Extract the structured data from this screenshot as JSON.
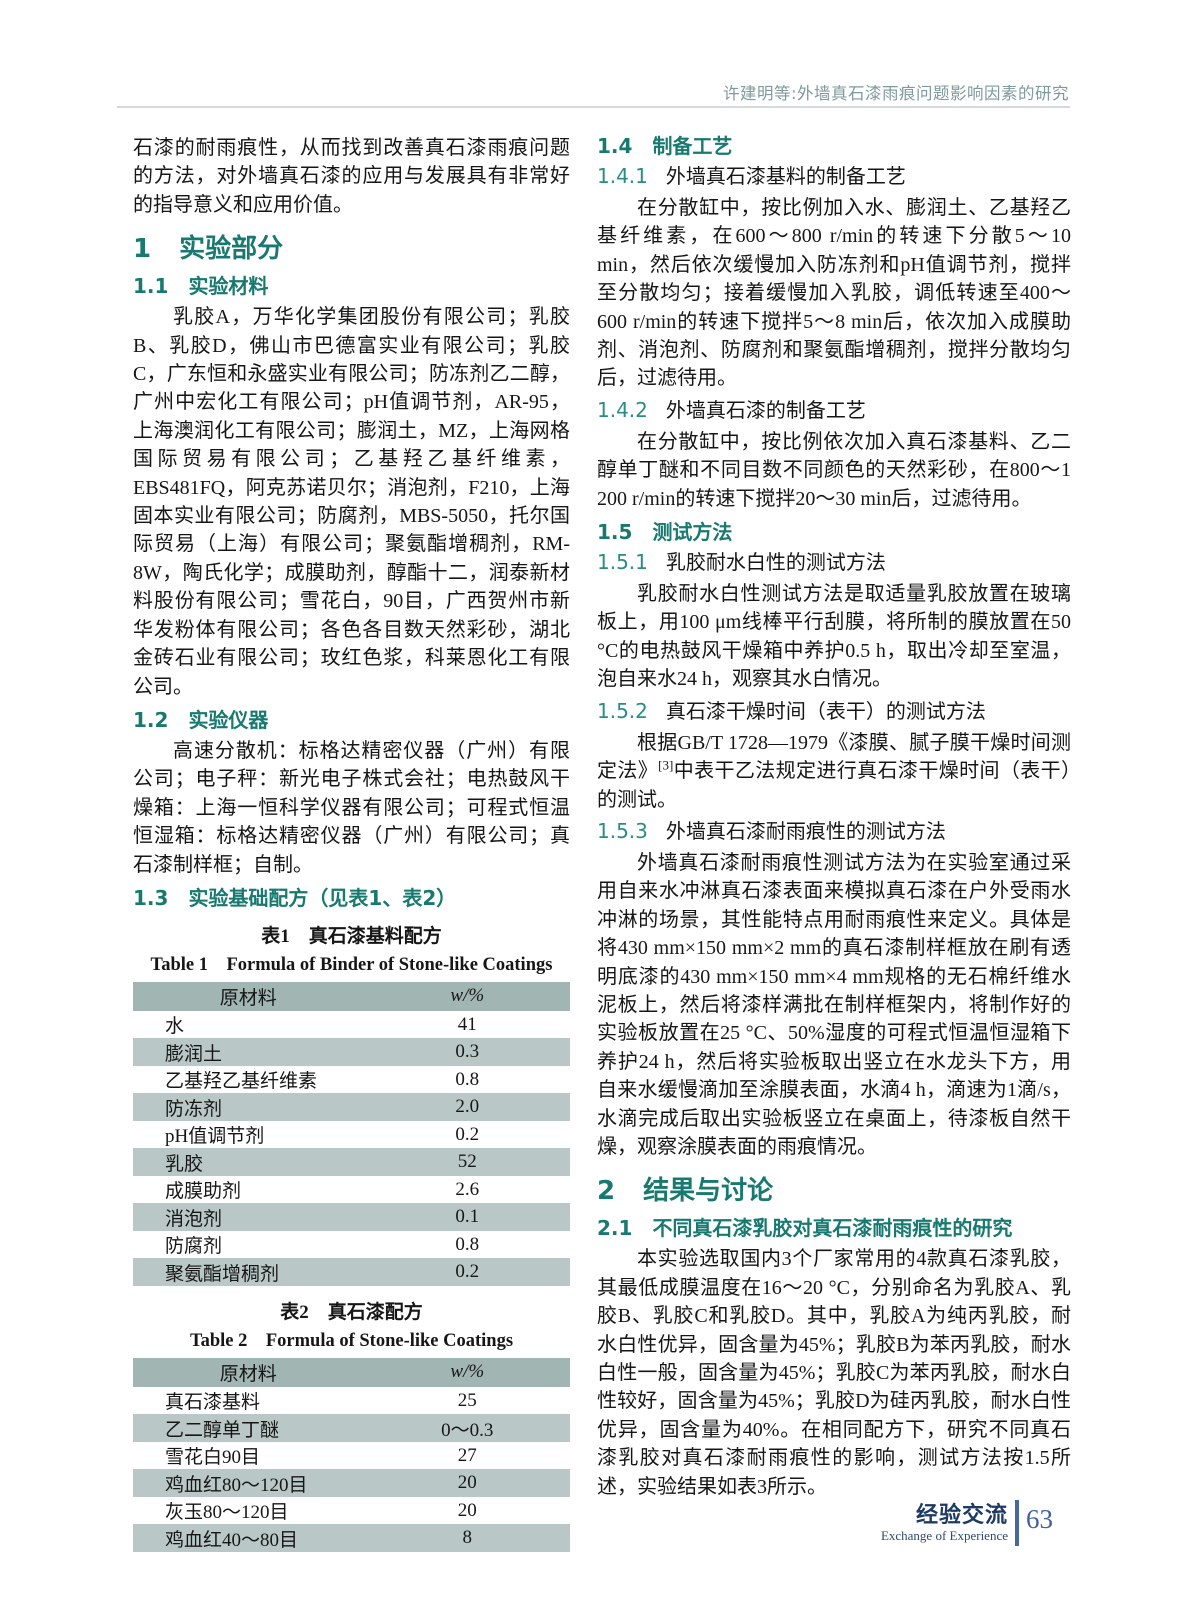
{
  "header": {
    "running_title": "许建明等:外墙真石漆雨痕问题影响因素的研究"
  },
  "left": {
    "intro": "石漆的耐雨痕性，从而找到改善真石漆雨痕问题的方法，对外墙真石漆的应用与发展具有非常好的指导意义和应用价值。",
    "sec1": {
      "num": "1",
      "title": "实验部分"
    },
    "s11": {
      "num": "1.1",
      "title": "实验材料",
      "body": "乳胶A，万华化学集团股份有限公司；乳胶B、乳胶D，佛山市巴德富实业有限公司；乳胶C，广东恒和永盛实业有限公司；防冻剂乙二醇，广州中宏化工有限公司；pH值调节剂，AR-95，上海澳润化工有限公司；膨润土，MZ，上海网格国际贸易有限公司；乙基羟乙基纤维素，EBS481FQ，阿克苏诺贝尔；消泡剂，F210，上海固本实业有限公司；防腐剂，MBS-5050，托尔国际贸易（上海）有限公司；聚氨酯增稠剂，RM-8W，陶氏化学；成膜助剂，醇酯十二，润泰新材料股份有限公司；雪花白，90目，广西贺州市新华发粉体有限公司；各色各目数天然彩砂，湖北金砖石业有限公司；玫红色浆，科莱恩化工有限公司。"
    },
    "s12": {
      "num": "1.2",
      "title": "实验仪器",
      "body": "高速分散机：标格达精密仪器（广州）有限公司；电子秤：新光电子株式会社；电热鼓风干燥箱：上海一恒科学仪器有限公司；可程式恒温恒湿箱：标格达精密仪器（广州）有限公司；真石漆制样框；自制。"
    },
    "s13": {
      "num": "1.3",
      "title": "实验基础配方（见表1、表2）"
    },
    "table1": {
      "caption_cn": "表1　真石漆基料配方",
      "caption_en": "Table 1　Formula of Binder of Stone-like Coatings",
      "col_material": "原材料",
      "col_w": "w/%",
      "rows": [
        {
          "m": "水",
          "w": "41"
        },
        {
          "m": "膨润土",
          "w": "0.3"
        },
        {
          "m": "乙基羟乙基纤维素",
          "w": "0.8"
        },
        {
          "m": "防冻剂",
          "w": "2.0"
        },
        {
          "m": "pH值调节剂",
          "w": "0.2"
        },
        {
          "m": "乳胶",
          "w": "52"
        },
        {
          "m": "成膜助剂",
          "w": "2.6"
        },
        {
          "m": "消泡剂",
          "w": "0.1"
        },
        {
          "m": "防腐剂",
          "w": "0.8"
        },
        {
          "m": "聚氨酯增稠剂",
          "w": "0.2"
        }
      ]
    },
    "table2": {
      "caption_cn": "表2　真石漆配方",
      "caption_en": "Table 2　Formula of Stone-like Coatings",
      "col_material": "原材料",
      "col_w": "w/%",
      "rows": [
        {
          "m": "真石漆基料",
          "w": "25"
        },
        {
          "m": "乙二醇单丁醚",
          "w": "0～0.3"
        },
        {
          "m": "雪花白90目",
          "w": "27"
        },
        {
          "m": "鸡血红80～120目",
          "w": "20"
        },
        {
          "m": "灰玉80～120目",
          "w": "20"
        },
        {
          "m": "鸡血红40～80目",
          "w": "8"
        }
      ]
    }
  },
  "right": {
    "s14": {
      "num": "1.4",
      "title": "制备工艺"
    },
    "s141": {
      "num": "1.4.1",
      "title": "外墙真石漆基料的制备工艺",
      "body": "在分散缸中，按比例加入水、膨润土、乙基羟乙基纤维素，在600～800 r/min的转速下分散5～10 min，然后依次缓慢加入防冻剂和pH值调节剂，搅拌至分散均匀；接着缓慢加入乳胶，调低转速至400～600 r/min的转速下搅拌5～8 min后，依次加入成膜助剂、消泡剂、防腐剂和聚氨酯增稠剂，搅拌分散均匀后，过滤待用。"
    },
    "s142": {
      "num": "1.4.2",
      "title": "外墙真石漆的制备工艺",
      "body": "在分散缸中，按比例依次加入真石漆基料、乙二醇单丁醚和不同目数不同颜色的天然彩砂，在800～1 200 r/min的转速下搅拌20～30 min后，过滤待用。"
    },
    "s15": {
      "num": "1.5",
      "title": "测试方法"
    },
    "s151": {
      "num": "1.5.1",
      "title": "乳胶耐水白性的测试方法",
      "body": "乳胶耐水白性测试方法是取适量乳胶放置在玻璃板上，用100 μm线棒平行刮膜，将所制的膜放置在50 °C的电热鼓风干燥箱中养护0.5 h，取出冷却至室温，泡自来水24 h，观察其水白情况。"
    },
    "s152": {
      "num": "1.5.2",
      "title": "真石漆干燥时间（表干）的测试方法",
      "body_pre": "根据GB/T 1728—1979《漆膜、腻子膜干燥时间测定法》",
      "body_sup": "[3]",
      "body_post": "中表干乙法规定进行真石漆干燥时间（表干）的测试。"
    },
    "s153": {
      "num": "1.5.3",
      "title": "外墙真石漆耐雨痕性的测试方法",
      "body": "外墙真石漆耐雨痕性测试方法为在实验室通过采用自来水冲淋真石漆表面来模拟真石漆在户外受雨水冲淋的场景，其性能特点用耐雨痕性来定义。具体是将430 mm×150 mm×2 mm的真石漆制样框放在刷有透明底漆的430 mm×150 mm×4 mm规格的无石棉纤维水泥板上，然后将漆样满批在制样框架内，将制作好的实验板放置在25 °C、50%湿度的可程式恒温恒湿箱下养护24 h，然后将实验板取出竖立在水龙头下方，用自来水缓慢滴加至涂膜表面，水滴4 h，滴速为1滴/s，水滴完成后取出实验板竖立在桌面上，待漆板自然干燥，观察涂膜表面的雨痕情况。"
    },
    "sec2": {
      "num": "2",
      "title": "结果与讨论"
    },
    "s21": {
      "num": "2.1",
      "title": "不同真石漆乳胶对真石漆耐雨痕性的研究",
      "body": "本实验选取国内3个厂家常用的4款真石漆乳胶，其最低成膜温度在16～20 °C，分别命名为乳胶A、乳胶B、乳胶C和乳胶D。其中，乳胶A为纯丙乳胶，耐水白性优异，固含量为45%；乳胶B为苯丙乳胶，耐水白性一般，固含量为45%；乳胶C为苯丙乳胶，耐水白性较好，固含量为45%；乳胶D为硅丙乳胶，耐水白性优异，固含量为40%。在相同配方下，研究不同真石漆乳胶对真石漆耐雨痕性的影响，测试方法按1.5所述，实验结果如表3所示。"
    }
  },
  "footer": {
    "section_cn": "经验交流",
    "section_en": "Exchange of Experience",
    "page_number": "63"
  }
}
